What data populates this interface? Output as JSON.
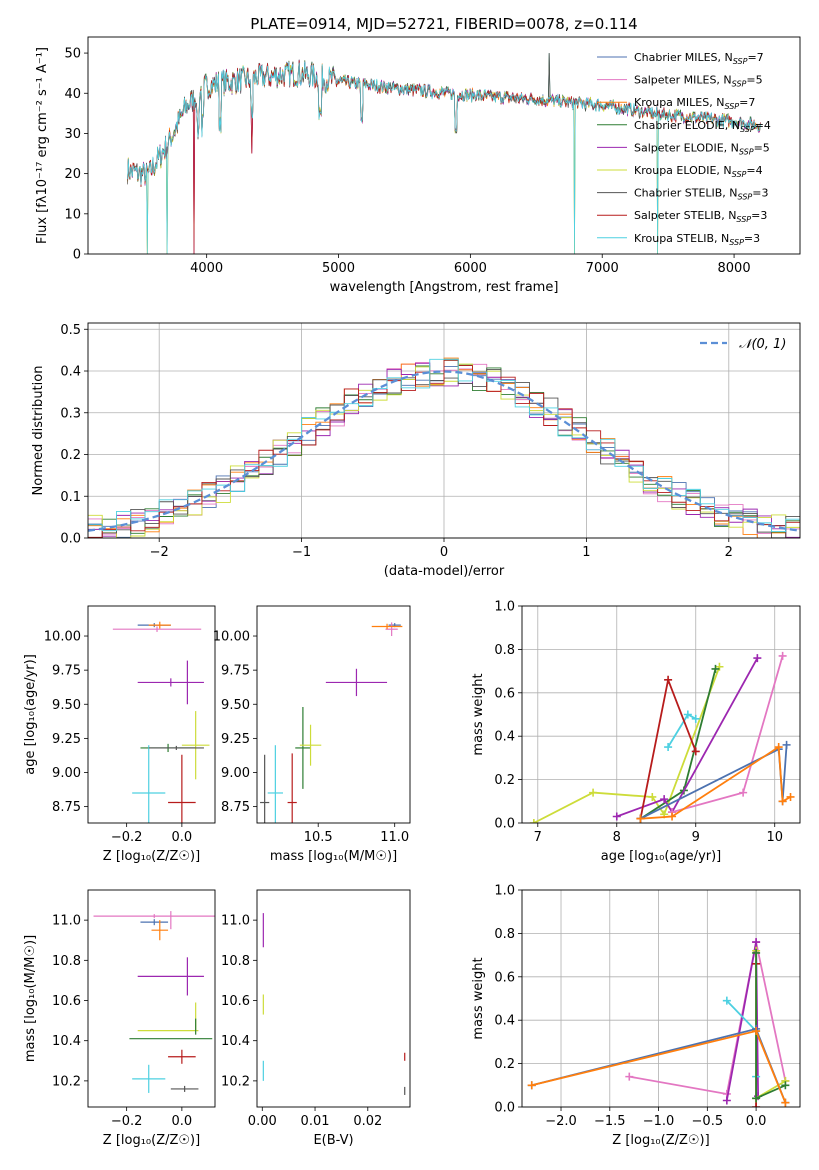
{
  "colors": {
    "Chabrier MILES": "#4c72b0",
    "Salpeter MILES": "#e377c2",
    "Kroupa MILES": "#ff7f0e",
    "Chabrier ELODIE": "#2e7d32",
    "Salpeter ELODIE": "#9c27b0",
    "Kroupa ELODIE": "#cddc39",
    "Chabrier STELIB": "#555555",
    "Salpeter STELIB": "#b71c1c",
    "Kroupa STELIB": "#4dd0e1",
    "model_dash": "#5b8fd6",
    "grid": "#b0b0b0"
  },
  "chart_data": [
    {
      "id": "spectrum",
      "type": "line",
      "title": "PLATE=0914, MJD=52721, FIBERID=0078, z=0.114",
      "xlabel": "wavelength [Angstrom, rest frame]",
      "ylabel": "Flux [fλ10⁻¹⁷ erg cm⁻² s⁻¹ A⁻¹]",
      "xlim": [
        3100,
        8500
      ],
      "ylim": [
        0,
        54
      ],
      "xticks": [
        "4000",
        "5000",
        "6000",
        "7000",
        "8000"
      ],
      "yticks": [
        "0",
        "10",
        "20",
        "30",
        "40",
        "50"
      ],
      "grid": false,
      "legend_position": "top-right",
      "legend": [
        {
          "name": "Chabrier MILES",
          "nssp": "7"
        },
        {
          "name": "Salpeter MILES",
          "nssp": "5"
        },
        {
          "name": "Kroupa MILES",
          "nssp": "7"
        },
        {
          "name": "Chabrier ELODIE",
          "nssp": "4"
        },
        {
          "name": "Salpeter ELODIE",
          "nssp": "5"
        },
        {
          "name": "Kroupa ELODIE",
          "nssp": "4"
        },
        {
          "name": "Chabrier STELIB",
          "nssp": "3"
        },
        {
          "name": "Salpeter STELIB",
          "nssp": "3"
        },
        {
          "name": "Kroupa STELIB",
          "nssp": "3"
        }
      ],
      "continuum": {
        "x": [
          3400,
          3550,
          3700,
          3850,
          4000,
          4200,
          4400,
          4700,
          5000,
          5500,
          6000,
          6500,
          7000,
          7400,
          7700,
          8000,
          8200
        ],
        "y": [
          21,
          19.5,
          27,
          37,
          42,
          43,
          44,
          45,
          43,
          41,
          39.5,
          38.5,
          37,
          35,
          34,
          33,
          32
        ]
      },
      "spikes": [
        {
          "x": 3550,
          "y": 0
        },
        {
          "x": 3700,
          "y": 0
        },
        {
          "x": 3905,
          "y": 0
        },
        {
          "x": 4340,
          "y": 25
        },
        {
          "x": 6600,
          "y": 50
        },
        {
          "x": 6790,
          "y": 0
        },
        {
          "x": 7420,
          "y": 0
        }
      ]
    },
    {
      "id": "residuals",
      "type": "histogram",
      "xlabel": "(data-model)/error",
      "ylabel": "Normed distribution",
      "xlim": [
        -2.5,
        2.5
      ],
      "ylim": [
        0,
        0.515
      ],
      "xticks": [
        "−2",
        "−1",
        "0",
        "1",
        "2"
      ],
      "yticks": [
        "0.0",
        "0.1",
        "0.2",
        "0.3",
        "0.4",
        "0.5"
      ],
      "grid": true,
      "legend_position": "top-right",
      "model_curve": "𝒩(0, 1)",
      "bin_width": 0.1,
      "bin_start": -2.5
    },
    {
      "id": "age_vs_Z",
      "type": "scatter",
      "xlabel": "Z [log₁₀(Z/Z☉)]",
      "ylabel": "age  [log₁₀(age/yr)]",
      "xlim": [
        -0.34,
        0.12
      ],
      "ylim": [
        8.63,
        10.22
      ],
      "xticks": [
        "−0.2",
        "0.0"
      ],
      "yticks": [
        "8.75",
        "9.00",
        "9.25",
        "9.50",
        "9.75",
        "10.00"
      ],
      "points": [
        {
          "model": "Chabrier MILES",
          "x": -0.1,
          "y": 10.08,
          "xerr": 0.06,
          "yerr": 0.03
        },
        {
          "model": "Salpeter MILES",
          "x": -0.09,
          "y": 10.05,
          "xerr": 0.16,
          "yerr": 0.04
        },
        {
          "model": "Kroupa MILES",
          "x": -0.08,
          "y": 10.08,
          "xerr": 0.04,
          "yerr": 0.05
        },
        {
          "model": "Salpeter ELODIE",
          "x": -0.04,
          "y": 9.66,
          "xerr": 0.12,
          "yerr": 0.06
        },
        {
          "model": "Salpeter ELODIE",
          "x": 0.02,
          "y": 9.66,
          "xerr": 0.0,
          "yerr": 0.32
        },
        {
          "model": "Chabrier ELODIE",
          "x": -0.05,
          "y": 9.18,
          "xerr": 0.1,
          "yerr": 0.06
        },
        {
          "model": "Kroupa ELODIE",
          "x": 0.05,
          "y": 9.2,
          "xerr": 0.05,
          "yerr": 0.5
        },
        {
          "model": "Kroupa STELIB",
          "x": -0.12,
          "y": 8.85,
          "xerr": 0.06,
          "yerr": 0.7
        },
        {
          "model": "Salpeter STELIB",
          "x": 0.0,
          "y": 8.78,
          "xerr": 0.05,
          "yerr": 0.7
        },
        {
          "model": "Chabrier STELIB",
          "x": -0.02,
          "y": 9.18,
          "xerr": 0.1,
          "yerr": 0.03
        }
      ]
    },
    {
      "id": "age_vs_mass",
      "type": "scatter",
      "xlabel": "mass [log₁₀(M/M☉)]",
      "ylabel": "",
      "xlim": [
        10.1,
        11.1
      ],
      "ylim": [
        8.63,
        10.22
      ],
      "xticks": [
        "10.5",
        "11.0"
      ],
      "yticks": [
        "8.75",
        "9.00",
        "9.25",
        "9.50",
        "9.75",
        "10.00"
      ],
      "points": [
        {
          "model": "Chabrier MILES",
          "x": 11.0,
          "y": 10.08,
          "xerr": 0.04,
          "yerr": 0.03
        },
        {
          "model": "Salpeter MILES",
          "x": 10.98,
          "y": 10.05,
          "xerr": 0.04,
          "yerr": 0.1
        },
        {
          "model": "Kroupa MILES",
          "x": 10.95,
          "y": 10.07,
          "xerr": 0.1,
          "yerr": 0.04
        },
        {
          "model": "Salpeter ELODIE",
          "x": 10.75,
          "y": 9.66,
          "xerr": 0.2,
          "yerr": 0.2
        },
        {
          "model": "Chabrier ELODIE",
          "x": 10.4,
          "y": 9.18,
          "xerr": 0.05,
          "yerr": 0.6
        },
        {
          "model": "Kroupa ELODIE",
          "x": 10.45,
          "y": 9.2,
          "xerr": 0.07,
          "yerr": 0.3
        },
        {
          "model": "Kroupa STELIB",
          "x": 10.22,
          "y": 8.85,
          "xerr": 0.05,
          "yerr": 0.7
        },
        {
          "model": "Salpeter STELIB",
          "x": 10.33,
          "y": 8.78,
          "xerr": 0.03,
          "yerr": 0.72
        },
        {
          "model": "Chabrier STELIB",
          "x": 10.15,
          "y": 8.78,
          "xerr": 0.03,
          "yerr": 0.7
        }
      ]
    },
    {
      "id": "weight_vs_age",
      "type": "line",
      "xlabel": "age  [log₁₀(age/yr)]",
      "ylabel": "mass weight",
      "xlim": [
        6.8,
        10.32
      ],
      "ylim": [
        0,
        1
      ],
      "xticks": [
        "7",
        "8",
        "9",
        "10"
      ],
      "yticks": [
        "0.0",
        "0.2",
        "0.4",
        "0.6",
        "0.8",
        "1.0"
      ],
      "grid": true,
      "series": [
        {
          "model": "Kroupa ELODIE",
          "x": [
            6.95,
            7.7,
            8.45,
            8.6,
            9.3
          ],
          "y": [
            0.0,
            0.14,
            0.12,
            0.04,
            0.72
          ]
        },
        {
          "model": "Chabrier ELODIE",
          "x": [
            8.3,
            8.85,
            9.25
          ],
          "y": [
            0.02,
            0.15,
            0.71
          ]
        },
        {
          "model": "Salpeter ELODIE",
          "x": [
            8.0,
            8.6,
            8.7,
            9.78
          ],
          "y": [
            0.03,
            0.11,
            0.05,
            0.76
          ]
        },
        {
          "model": "Kroupa STELIB",
          "x": [
            8.65,
            8.9,
            9.0
          ],
          "y": [
            0.35,
            0.5,
            0.48
          ]
        },
        {
          "model": "Salpeter STELIB",
          "x": [
            8.3,
            8.65,
            9.0
          ],
          "y": [
            0.02,
            0.66,
            0.33
          ]
        },
        {
          "model": "Salpeter MILES",
          "x": [
            8.7,
            9.6,
            10.1
          ],
          "y": [
            0.05,
            0.14,
            0.77
          ]
        },
        {
          "model": "Chabrier MILES",
          "x": [
            8.3,
            10.05,
            10.1,
            10.15
          ],
          "y": [
            0.02,
            0.34,
            0.1,
            0.36
          ]
        },
        {
          "model": "Kroupa MILES",
          "x": [
            8.3,
            8.7,
            10.05,
            10.1,
            10.2
          ],
          "y": [
            0.02,
            0.03,
            0.35,
            0.1,
            0.12
          ]
        }
      ]
    },
    {
      "id": "mass_vs_Z",
      "type": "scatter",
      "xlabel": "Z [log₁₀(Z/Z☉)]",
      "ylabel": "mass [log₁₀(M/M☉)]",
      "xlim": [
        -0.34,
        0.12
      ],
      "ylim": [
        10.07,
        11.15
      ],
      "xticks": [
        "−0.2",
        "0.0"
      ],
      "yticks": [
        "10.2",
        "10.4",
        "10.6",
        "10.8",
        "11.0"
      ],
      "points": [
        {
          "model": "Chabrier MILES",
          "x": -0.1,
          "y": 10.99,
          "xerr": 0.05,
          "yerr": 0.03
        },
        {
          "model": "Salpeter MILES",
          "x": -0.1,
          "y": 11.02,
          "xerr": 0.22,
          "yerr": 0.02
        },
        {
          "model": "Kroupa MILES",
          "x": -0.08,
          "y": 10.95,
          "xerr": 0.03,
          "yerr": 0.1
        },
        {
          "model": "Salpeter MILES",
          "x": -0.04,
          "y": 11.0,
          "xerr": 0.0,
          "yerr": 0.09
        },
        {
          "model": "Salpeter ELODIE",
          "x": -0.04,
          "y": 10.72,
          "xerr": 0.12,
          "yerr": 0.0
        },
        {
          "model": "Salpeter ELODIE",
          "x": 0.02,
          "y": 10.72,
          "xerr": 0.0,
          "yerr": 0.19
        },
        {
          "model": "Kroupa ELODIE",
          "x": -0.05,
          "y": 10.45,
          "xerr": 0.11,
          "yerr": 0.0
        },
        {
          "model": "Kroupa ELODIE",
          "x": 0.05,
          "y": 10.52,
          "xerr": 0.0,
          "yerr": 0.14
        },
        {
          "model": "Chabrier ELODIE",
          "x": -0.04,
          "y": 10.41,
          "xerr": 0.15,
          "yerr": 0.0
        },
        {
          "model": "Chabrier ELODIE",
          "x": 0.05,
          "y": 10.47,
          "xerr": 0.0,
          "yerr": 0.08
        },
        {
          "model": "Kroupa STELIB",
          "x": -0.12,
          "y": 10.21,
          "xerr": 0.06,
          "yerr": 0.14
        },
        {
          "model": "Salpeter STELIB",
          "x": 0.0,
          "y": 10.32,
          "xerr": 0.05,
          "yerr": 0.07
        },
        {
          "model": "Chabrier STELIB",
          "x": 0.01,
          "y": 10.16,
          "xerr": 0.05,
          "yerr": 0.03
        }
      ]
    },
    {
      "id": "mass_vs_ebv",
      "type": "scatter",
      "xlabel": "E(B-V)",
      "ylabel": "",
      "xlim": [
        -0.001,
        0.028
      ],
      "ylim": [
        10.07,
        11.15
      ],
      "xticks": [
        "0.00",
        "0.01",
        "0.02"
      ],
      "yticks": [
        "10.2",
        "10.4",
        "10.6",
        "10.8",
        "11.0"
      ],
      "points": [
        {
          "model": "Salpeter ELODIE",
          "x": 0.0002,
          "y": 10.95,
          "xerr": 0.0,
          "yerr": 0.17
        },
        {
          "model": "Kroupa ELODIE",
          "x": 0.0002,
          "y": 10.58,
          "xerr": 0.0,
          "yerr": 0.1
        },
        {
          "model": "Kroupa STELIB",
          "x": 0.0002,
          "y": 10.25,
          "xerr": 0.0,
          "yerr": 0.1
        },
        {
          "model": "Salpeter STELIB",
          "x": 0.027,
          "y": 10.32,
          "xerr": 0.0,
          "yerr": 0.04
        },
        {
          "model": "Chabrier STELIB",
          "x": 0.027,
          "y": 10.15,
          "xerr": 0.0,
          "yerr": 0.04
        }
      ]
    },
    {
      "id": "weight_vs_Z",
      "type": "line",
      "xlabel": "Z [log₁₀(Z/Z☉)]",
      "ylabel": "mass weight",
      "xlim": [
        -2.4,
        0.45
      ],
      "ylim": [
        0,
        1
      ],
      "xticks": [
        "−2.0",
        "−1.5",
        "−1.0",
        "−0.5",
        "0.0"
      ],
      "yticks": [
        "0.0",
        "0.2",
        "0.4",
        "0.6",
        "0.8",
        "1.0"
      ],
      "grid": true,
      "series": [
        {
          "model": "Salpeter MILES",
          "x": [
            -1.3,
            -0.3,
            0.0,
            0.3
          ],
          "y": [
            0.14,
            0.06,
            0.76,
            0.12
          ]
        },
        {
          "model": "Salpeter ELODIE",
          "x": [
            -0.3,
            0.0,
            0.02
          ],
          "y": [
            0.03,
            0.76,
            0.05
          ]
        },
        {
          "model": "Salpeter STELIB",
          "x": [
            0.0,
            0.0
          ],
          "y": [
            0.0,
            0.66
          ]
        },
        {
          "model": "Kroupa STELIB",
          "x": [
            -0.3,
            0.0,
            0.0
          ],
          "y": [
            0.49,
            0.35,
            0.14
          ]
        },
        {
          "model": "Kroupa ELODIE",
          "x": [
            0.0,
            0.0,
            0.3
          ],
          "y": [
            0.72,
            0.04,
            0.12
          ]
        },
        {
          "model": "Chabrier ELODIE",
          "x": [
            0.0,
            0.0,
            0.3
          ],
          "y": [
            0.71,
            0.04,
            0.1
          ]
        },
        {
          "model": "Chabrier MILES",
          "x": [
            -2.3,
            0.0,
            0.3
          ],
          "y": [
            0.1,
            0.36,
            0.02
          ]
        },
        {
          "model": "Kroupa MILES",
          "x": [
            -2.3,
            0.0,
            0.3
          ],
          "y": [
            0.1,
            0.35,
            0.02
          ]
        }
      ]
    }
  ]
}
